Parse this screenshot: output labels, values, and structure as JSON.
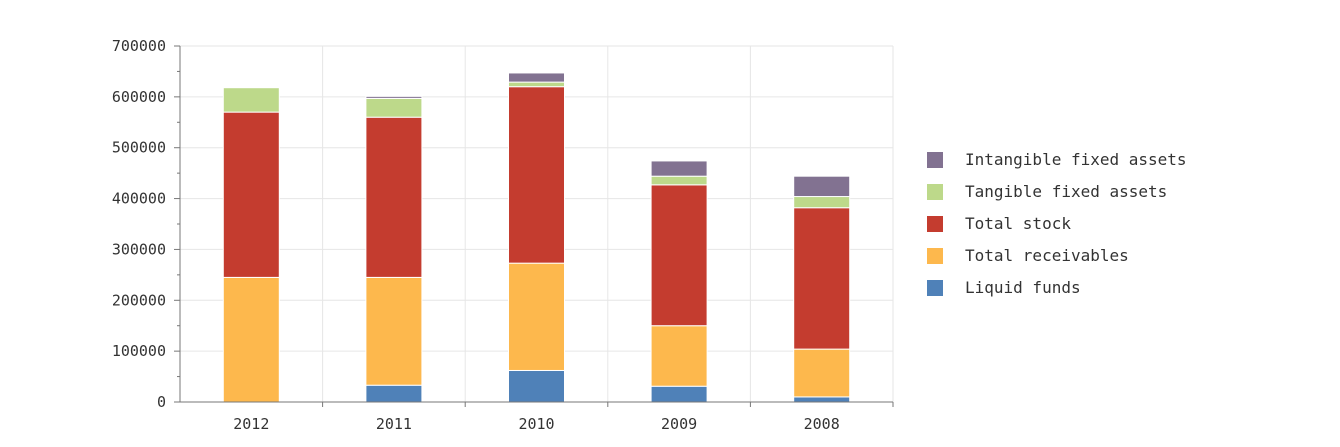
{
  "chart_data": {
    "type": "bar",
    "stacked": true,
    "title": "",
    "xlabel": "",
    "ylabel": "",
    "categories": [
      "2012",
      "2011",
      "2010",
      "2009",
      "2008"
    ],
    "ylim": [
      0,
      700000
    ],
    "yticks": [
      "0",
      "100000",
      "200000",
      "300000",
      "400000",
      "500000",
      "600000",
      "700000"
    ],
    "grid": true,
    "legend_position": "right",
    "series": [
      {
        "name": "Liquid funds",
        "color": "#4f81b8",
        "values": [
          0,
          33000,
          62000,
          31000,
          10000
        ]
      },
      {
        "name": "Total receivables",
        "color": "#fdb84d",
        "values": [
          245000,
          212000,
          211000,
          119000,
          94000
        ]
      },
      {
        "name": "Total stock",
        "color": "#c43c2f",
        "values": [
          325000,
          315000,
          347000,
          277000,
          278000
        ]
      },
      {
        "name": "Tangible fixed assets",
        "color": "#bdd98a",
        "values": [
          48000,
          37000,
          9000,
          17000,
          22000
        ]
      },
      {
        "name": "Intangible fixed assets",
        "color": "#827291",
        "values": [
          0,
          4000,
          18000,
          30000,
          40000
        ]
      }
    ]
  }
}
